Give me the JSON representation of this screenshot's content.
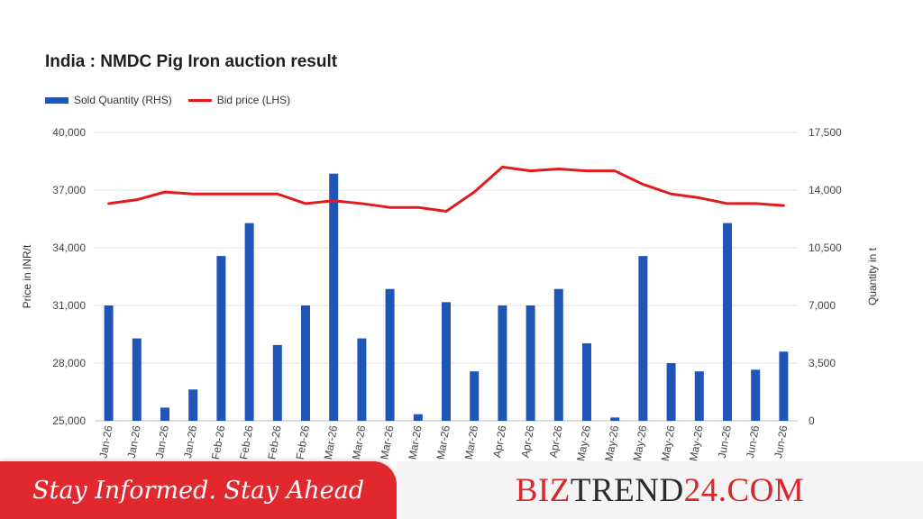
{
  "chart_data": {
    "type": "bar+line",
    "title": "India : NMDC Pig Iron auction result",
    "legend": [
      {
        "label": "Sold Quantity (RHS)",
        "color": "#1f56b5",
        "kind": "bar"
      },
      {
        "label": "Bid price (LHS)",
        "color": "#e11b1b",
        "kind": "line"
      }
    ],
    "legend_placement": "top-left",
    "ylabel_left": "Price in INR/t",
    "ylabel_right": "Quantity in t",
    "ylim_left": [
      25000,
      40000
    ],
    "ylim_right": [
      0,
      17500
    ],
    "yticks_left": [
      "25,000",
      "28,000",
      "31,000",
      "34,000",
      "37,000",
      "40,000"
    ],
    "yticks_right": [
      "0",
      "3,500",
      "7,000",
      "10,500",
      "14,000",
      "17,500"
    ],
    "categories": [
      "Jan-26",
      "Jan-26",
      "Jan-26",
      "Jan-26",
      "Feb-26",
      "Feb-26",
      "Feb-26",
      "Feb-26",
      "Mar-26",
      "Mar-26",
      "Mar-26",
      "Mar-26",
      "Mar-26",
      "Mar-26",
      "Apr-26",
      "Apr-26",
      "Apr-26",
      "May-26",
      "May-26",
      "May-26",
      "May-26",
      "May-26",
      "Jun-26",
      "Jun-26",
      "Jun-26"
    ],
    "category_labels_shown": [
      "Jan-26",
      "Jan-26",
      "Jan-26",
      "Jan-26",
      "Feb-26",
      "Feb-26",
      "Feb-26",
      "Feb-26",
      "Mar-26",
      "Mar-26",
      "Mar-26",
      "Mar-26",
      "Mar-26",
      "Mar-26",
      "Apr-26",
      "Apr-26",
      "Apr-26",
      "May-26",
      "May-26",
      "May-26",
      "May-26",
      "May-26",
      "Jun-26",
      "Jun-26",
      "Jun-26"
    ],
    "series": [
      {
        "name": "Sold Quantity (RHS)",
        "axis": "right",
        "type": "bar",
        "color": "#1f56b5",
        "values": [
          7000,
          5000,
          800,
          1900,
          10000,
          12000,
          4600,
          7000,
          15000,
          5000,
          8000,
          400,
          7200,
          3000,
          7000,
          7000,
          8000,
          4700,
          200,
          10000,
          3500,
          3000,
          12000,
          3100,
          4200
        ]
      },
      {
        "name": "Bid price (LHS)",
        "axis": "left",
        "type": "line",
        "color": "#e11b1b",
        "values": [
          36300,
          36500,
          36900,
          36800,
          36800,
          36800,
          36800,
          36300,
          36450,
          36300,
          36100,
          36100,
          35900,
          36900,
          38200,
          38000,
          38100,
          38000,
          38000,
          37300,
          36800,
          36600,
          36300,
          36300,
          36200
        ]
      }
    ],
    "grid": {
      "horizontal": true,
      "vertical": false
    }
  },
  "footer": {
    "tagline": "Stay Informed. Stay Ahead",
    "brand_part1": "BIZ",
    "brand_part2": "TREND",
    "brand_part3": "24.COM",
    "colors": {
      "tagline_bg": "#e0282e",
      "brand_red": "#d9252b",
      "brand_dark": "#2b2b2b"
    }
  }
}
